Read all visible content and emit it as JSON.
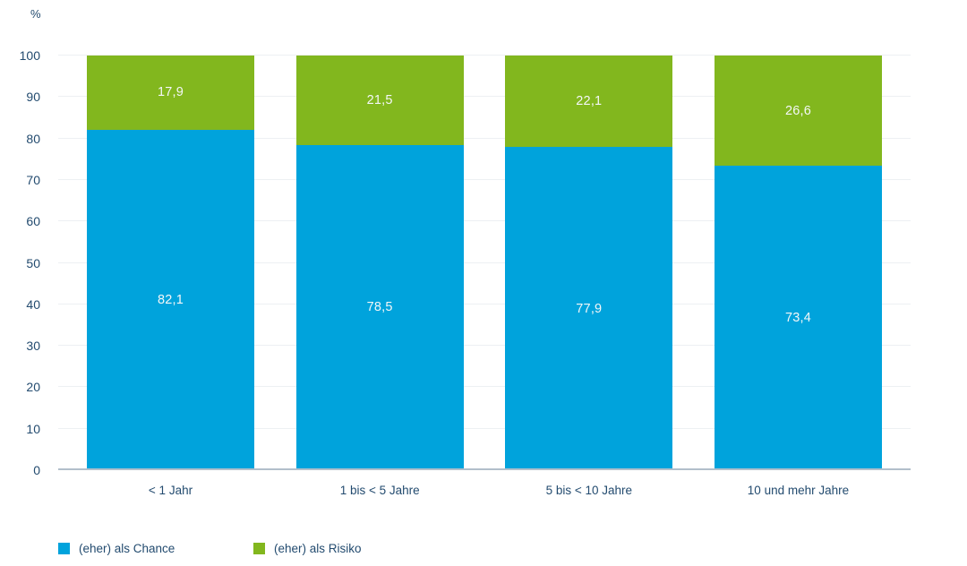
{
  "chart_data": {
    "type": "bar",
    "stacked": true,
    "title": "",
    "unit_label": "%",
    "xlabel": "",
    "ylabel": "%",
    "ylim": [
      0,
      100
    ],
    "yticks": [
      0,
      10,
      20,
      30,
      40,
      50,
      60,
      70,
      80,
      90,
      100
    ],
    "grid": true,
    "legend_position": "bottom",
    "categories": [
      "< 1 Jahr",
      "1 bis < 5 Jahre",
      "5 bis < 10 Jahre",
      "10 und mehr Jahre"
    ],
    "series": [
      {
        "name": "(eher) als Chance",
        "color": "#00A3DC",
        "values": [
          82.1,
          78.5,
          77.9,
          73.4
        ],
        "value_labels": [
          "82,1",
          "78,5",
          "77,9",
          "73,4"
        ]
      },
      {
        "name": "(eher) als Risiko",
        "color": "#82B71E",
        "values": [
          17.9,
          21.5,
          22.1,
          26.6
        ],
        "value_labels": [
          "17,9",
          "21,5",
          "22,1",
          "26,6"
        ]
      }
    ],
    "colors": {
      "axis_text": "#234B6F",
      "gridline": "#EDF0F3",
      "baseline": "#B2BFCB",
      "value_label_text": "#F4F7F8"
    }
  }
}
